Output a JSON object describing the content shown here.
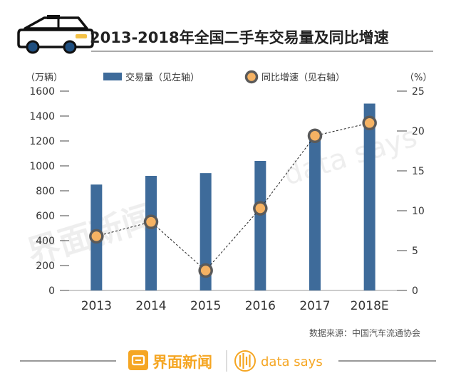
{
  "chart_data": {
    "type": "bar",
    "title": "2013-2018年全国二手车交易量及同比增速",
    "categories": [
      "2013",
      "2014",
      "2015",
      "2016",
      "2017",
      "2018E"
    ],
    "series": [
      {
        "name": "交易量（见左轴）",
        "type": "bar",
        "axis": "left",
        "color": "#3e6b9a",
        "values": [
          850,
          920,
          942,
          1040,
          1240,
          1500
        ]
      },
      {
        "name": "同比增速（见右轴）",
        "type": "line",
        "axis": "right",
        "color": "#f5b263",
        "values": [
          6.8,
          8.6,
          2.5,
          10.3,
          19.4,
          21.0
        ]
      }
    ],
    "left_axis": {
      "unit": "（万辆）",
      "range": [
        0,
        1600
      ],
      "ticks": [
        0,
        200,
        400,
        600,
        800,
        1000,
        1200,
        1400,
        1600
      ]
    },
    "right_axis": {
      "unit": "（%）",
      "range": [
        0,
        25
      ],
      "ticks": [
        0,
        5,
        10,
        15,
        20,
        25
      ]
    },
    "source": "数据来源：中国汽车流通协会"
  },
  "watermark": {
    "cn": "界面新闻",
    "en": "data says"
  },
  "footer": {
    "brand_cn": "界面新闻",
    "brand_en": "data says"
  },
  "colors": {
    "bar": "#3e6b9a",
    "marker_fill": "#f5b263",
    "marker_ring": "#5a5a5a",
    "brand": "#f5a623",
    "text": "#333333"
  }
}
